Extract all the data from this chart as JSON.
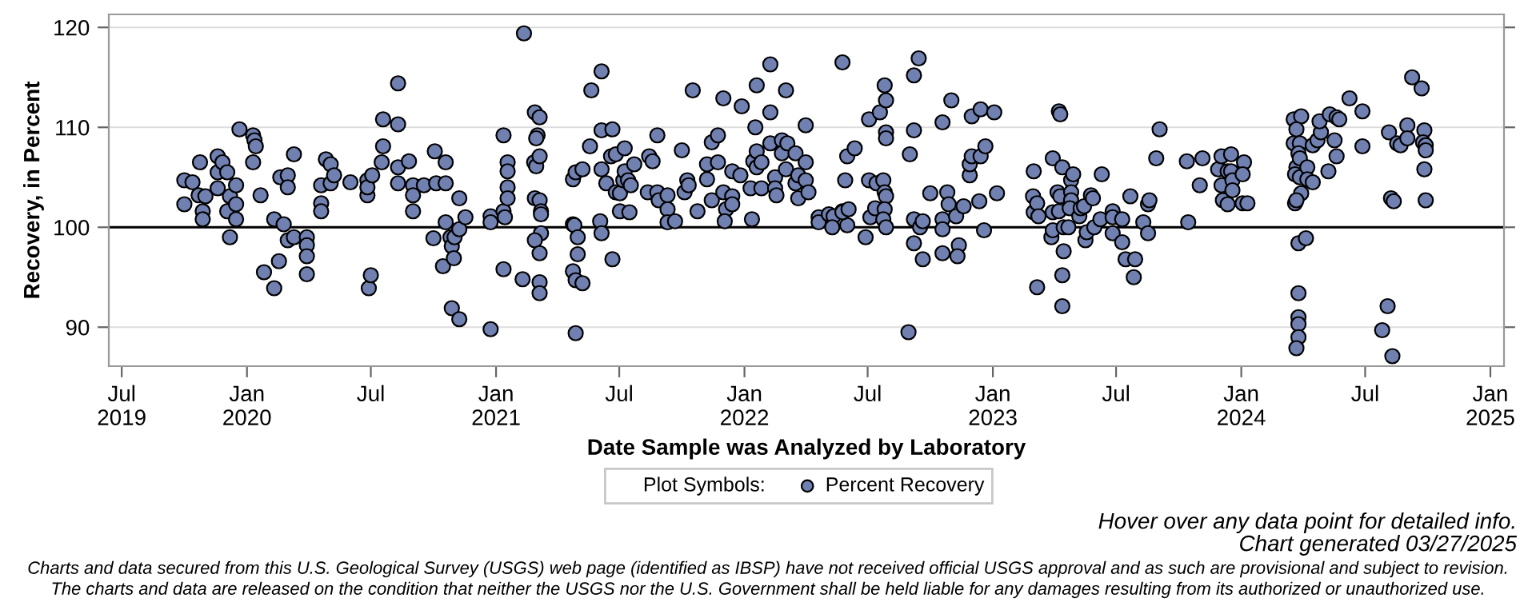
{
  "chart_data": {
    "type": "scatter",
    "xlabel": "Date Sample was Analyzed by Laboratory",
    "ylabel": "Recovery, in Percent",
    "legend_title": "Plot Symbols:",
    "legend": "bottom",
    "marker": "circle",
    "grid": "y",
    "xlim": [
      "2019-06-12",
      "2025-01-21"
    ],
    "ylim": [
      86.1,
      121.3
    ],
    "yticks": [
      90,
      100,
      110,
      120
    ],
    "xticks": [
      {
        "value": "2019-07-01",
        "label": "Jul\n2019"
      },
      {
        "value": "2020-01-01",
        "label": "Jan\n2020"
      },
      {
        "value": "2020-07-01",
        "label": "Jul"
      },
      {
        "value": "2021-01-01",
        "label": "Jan\n2021"
      },
      {
        "value": "2021-07-01",
        "label": "Jul"
      },
      {
        "value": "2022-01-01",
        "label": "Jan\n2022"
      },
      {
        "value": "2022-07-01",
        "label": "Jul"
      },
      {
        "value": "2023-01-01",
        "label": "Jan\n2023"
      },
      {
        "value": "2023-07-01",
        "label": "Jul"
      },
      {
        "value": "2024-01-01",
        "label": "Jan\n2024"
      },
      {
        "value": "2024-07-01",
        "label": "Jul"
      },
      {
        "value": "2025-01-01",
        "label": "Jan\n2025"
      }
    ],
    "ref_lines": [
      {
        "axis": "y",
        "value": 100,
        "color": "#000000"
      }
    ],
    "annotations": [
      "Hover over any data point for detailed info.",
      "Chart generated 03/27/2025",
      "Charts and data secured from this U.S. Geological Survey (USGS) web page (identified as IBSP) have not received official USGS approval and as such are provisional and subject to revision.",
      "The charts and data are released on the condition that neither the USGS nor the U.S. Government shall be held liable for any damages resulting from its authorized or unauthorized use."
    ],
    "series": [
      {
        "name": "Percent Recovery",
        "color": "#7080b0",
        "x": [
          "2019-10-01",
          "2019-10-01",
          "2019-10-13",
          "2019-10-24",
          "2019-10-22",
          "2019-10-28",
          "2019-10-28",
          "2019-11-01",
          "2019-11-19",
          "2019-11-19",
          "2019-11-19",
          "2019-11-26",
          "2019-12-03",
          "2019-12-03",
          "2019-12-07",
          "2019-12-07",
          "2019-12-16",
          "2019-12-16",
          "2019-12-16",
          "2019-12-21",
          "2020-01-10",
          "2020-01-10",
          "2020-01-12",
          "2020-01-14",
          "2020-01-21",
          "2020-01-26",
          "2020-02-10",
          "2020-02-10",
          "2020-02-17",
          "2020-02-19",
          "2020-02-24",
          "2020-03-01",
          "2020-03-01",
          "2020-03-01",
          "2020-03-10",
          "2020-03-10",
          "2020-03-29",
          "2020-03-29",
          "2020-03-29",
          "2020-03-29",
          "2020-04-19",
          "2020-04-19",
          "2020-04-19",
          "2020-04-26",
          "2020-05-03",
          "2020-05-03",
          "2020-05-08",
          "2020-06-01",
          "2020-06-26",
          "2020-06-26",
          "2020-06-26",
          "2020-06-28",
          "2020-07-01",
          "2020-07-03",
          "2020-07-17",
          "2020-07-19",
          "2020-07-19",
          "2020-08-10",
          "2020-08-10",
          "2020-08-10",
          "2020-08-10",
          "2020-08-26",
          "2020-09-01",
          "2020-09-01",
          "2020-09-01",
          "2020-09-17",
          "2020-10-01",
          "2020-10-03",
          "2020-10-05",
          "2020-10-15",
          "2020-10-19",
          "2020-10-19",
          "2020-10-19",
          "2020-10-26",
          "2020-10-28",
          "2020-10-28",
          "2020-10-31",
          "2020-11-01",
          "2020-11-08",
          "2020-11-08",
          "2020-11-08",
          "2020-11-17",
          "2020-12-24",
          "2020-12-24",
          "2020-12-24",
          "2021-01-12",
          "2021-01-12",
          "2021-01-14",
          "2021-01-12",
          "2021-01-18",
          "2021-01-18",
          "2021-01-18",
          "2021-01-18",
          "2021-02-09",
          "2021-02-11",
          "2021-02-27",
          "2021-03-06",
          "2021-03-03",
          "2021-03-01",
          "2021-02-26",
          "2021-03-01",
          "2021-03-06",
          "2021-02-27",
          "2021-03-06",
          "2021-03-08",
          "2021-03-08",
          "2021-03-08",
          "2021-02-27",
          "2021-03-06",
          "2021-03-06",
          "2021-03-06",
          "2021-04-24",
          "2021-04-26",
          "2021-04-24",
          "2021-04-28",
          "2021-05-08",
          "2021-05-01",
          "2021-05-01",
          "2021-04-24",
          "2021-04-28",
          "2021-05-08",
          "2021-04-28",
          "2021-05-19",
          "2021-05-21",
          "2021-06-05",
          "2021-06-05",
          "2021-06-05",
          "2021-06-03",
          "2021-06-05",
          "2021-06-12",
          "2021-06-21",
          "2021-06-21",
          "2021-06-19",
          "2021-06-26",
          "2021-06-26",
          "2021-07-02",
          "2021-07-09",
          "2021-07-07",
          "2021-07-09",
          "2021-07-02",
          "2021-07-16",
          "2021-07-14",
          "2021-07-18",
          "2021-07-23",
          "2021-08-12",
          "2021-08-14",
          "2021-08-19",
          "2021-08-26",
          "2021-08-28",
          "2021-08-26",
          "2021-09-10",
          "2021-09-10",
          "2021-09-10",
          "2021-09-21",
          "2021-10-01",
          "2021-10-05",
          "2021-10-09",
          "2021-10-11",
          "2021-10-17",
          "2021-10-24",
          "2021-11-07",
          "2021-11-07",
          "2021-11-14",
          "2021-11-14",
          "2021-11-23",
          "2021-11-23",
          "2021-12-01",
          "2021-12-01",
          "2021-12-05",
          "2021-12-03",
          "2021-12-14",
          "2021-12-14",
          "2021-12-14",
          "2021-12-26",
          "2021-12-28",
          "2022-01-12",
          "2022-01-10",
          "2022-01-14",
          "2022-01-17",
          "2022-01-19",
          "2022-01-19",
          "2022-01-19",
          "2022-01-26",
          "2022-01-26",
          "2022-02-08",
          "2022-02-08",
          "2022-02-08",
          "2022-02-15",
          "2022-02-15",
          "2022-02-17",
          "2022-02-25",
          "2022-02-25",
          "2022-03-03",
          "2022-03-03",
          "2022-03-05",
          "2022-03-17",
          "2022-03-17",
          "2022-03-21",
          "2022-03-21",
          "2022-04-01",
          "2022-04-01",
          "2022-04-01",
          "2022-04-05",
          "2022-04-20",
          "2022-04-20",
          "2022-05-05",
          "2022-05-12",
          "2022-05-10",
          "2022-05-25",
          "2022-05-25",
          "2022-06-01",
          "2022-05-29",
          "2022-06-01",
          "2022-05-25",
          "2022-06-03",
          "2022-06-12",
          "2022-06-28",
          "2022-07-03",
          "2022-07-03",
          "2022-07-05",
          "2022-07-12",
          "2022-07-14",
          "2022-07-19",
          "2022-07-24",
          "2022-07-26",
          "2022-07-28",
          "2022-07-28",
          "2022-07-28",
          "2022-07-26",
          "2022-07-28",
          "2022-07-26",
          "2022-07-24",
          "2022-07-28",
          "2022-09-01",
          "2022-09-07",
          "2022-09-14",
          "2022-09-07",
          "2022-09-07",
          "2022-09-16",
          "2022-09-20",
          "2022-09-07",
          "2022-09-20",
          "2022-08-30",
          "2022-10-01",
          "2022-10-19",
          "2022-10-19",
          "2022-10-19",
          "2022-10-19",
          "2022-10-26",
          "2022-10-28",
          "2022-11-01",
          "2022-11-08",
          "2022-11-12",
          "2022-11-10",
          "2022-11-19",
          "2022-11-28",
          "2022-11-28",
          "2022-12-01",
          "2022-12-01",
          "2022-12-14",
          "2022-12-12",
          "2022-12-14",
          "2022-12-19",
          "2022-12-21",
          "2023-01-03",
          "2023-01-07",
          "2023-03-02",
          "2023-03-01",
          "2023-03-02",
          "2023-03-07",
          "2023-03-09",
          "2023-03-07",
          "2023-03-30",
          "2023-03-28",
          "2023-03-30",
          "2023-03-30",
          "2023-04-08",
          "2023-04-10",
          "2023-04-06",
          "2023-04-10",
          "2023-04-08",
          "2023-04-13",
          "2023-04-15",
          "2023-04-15",
          "2023-04-13",
          "2023-04-13",
          "2023-04-22",
          "2023-04-26",
          "2023-04-29",
          "2023-04-26",
          "2023-04-26",
          "2023-04-24",
          "2023-05-08",
          "2023-05-10",
          "2023-05-15",
          "2023-05-17",
          "2023-05-19",
          "2023-05-25",
          "2023-05-28",
          "2023-05-30",
          "2023-06-08",
          "2023-06-10",
          "2023-06-26",
          "2023-06-26",
          "2023-06-26",
          "2023-07-10",
          "2023-07-10",
          "2023-07-15",
          "2023-07-29",
          "2023-07-27",
          "2023-07-22",
          "2023-08-10",
          "2023-08-17",
          "2023-08-19",
          "2023-08-17",
          "2023-08-29",
          "2023-09-03",
          "2023-10-13",
          "2023-10-15",
          "2023-11-01",
          "2023-11-05",
          "2023-11-28",
          "2023-12-03",
          "2023-12-03",
          "2023-12-05",
          "2023-12-12",
          "2023-12-12",
          "2023-12-17",
          "2023-12-17",
          "2023-12-19",
          "2023-12-19",
          "2024-01-03",
          "2024-01-05",
          "2024-01-03",
          "2024-01-10",
          "2024-03-18",
          "2024-03-29",
          "2024-03-18",
          "2024-03-22",
          "2024-03-27",
          "2024-03-25",
          "2024-03-22",
          "2024-03-27",
          "2024-03-20",
          "2024-03-27",
          "2024-03-29",
          "2024-03-20",
          "2024-03-22",
          "2024-04-07",
          "2024-04-07",
          "2024-04-15",
          "2024-03-25",
          "2024-04-05",
          "2024-03-25",
          "2024-03-25",
          "2024-03-25",
          "2024-03-25",
          "2024-03-22",
          "2024-04-15",
          "2024-04-22",
          "2024-04-27",
          "2024-04-25",
          "2024-05-08",
          "2024-05-10",
          "2024-05-20",
          "2024-05-17",
          "2024-05-20",
          "2024-05-24",
          "2024-06-08",
          "2024-06-27",
          "2024-06-27",
          "2024-07-26",
          "2024-08-03",
          "2024-08-05",
          "2024-08-08",
          "2024-08-12",
          "2024-08-10",
          "2024-08-17",
          "2024-08-22",
          "2024-09-01",
          "2024-09-01",
          "2024-09-08",
          "2024-09-22",
          "2024-09-26",
          "2024-09-24",
          "2024-09-28",
          "2024-09-28",
          "2024-09-26",
          "2024-09-28"
        ],
        "values": [
          104.7,
          102.3,
          104.5,
          106.5,
          103.2,
          101.6,
          100.8,
          103.1,
          107.1,
          105.5,
          103.9,
          106.5,
          105.5,
          101.6,
          103.1,
          99.0,
          104.2,
          102.3,
          100.8,
          109.8,
          109.2,
          106.5,
          108.7,
          108.1,
          103.2,
          95.5,
          100.8,
          93.9,
          96.6,
          105.0,
          100.3,
          105.2,
          104.0,
          98.7,
          107.3,
          99.0,
          99.0,
          98.2,
          97.1,
          95.3,
          104.2,
          102.4,
          101.6,
          106.8,
          106.3,
          104.4,
          105.2,
          104.5,
          104.7,
          103.2,
          104.0,
          93.9,
          95.2,
          105.2,
          106.5,
          110.8,
          108.1,
          114.4,
          110.3,
          106.0,
          104.4,
          106.6,
          104.2,
          103.2,
          101.6,
          104.2,
          98.9,
          107.6,
          104.4,
          96.1,
          106.5,
          104.4,
          100.5,
          99.0,
          98.1,
          91.9,
          96.9,
          99.0,
          102.9,
          99.8,
          90.8,
          101.0,
          101.1,
          100.5,
          89.8,
          109.2,
          101.6,
          101.0,
          95.8,
          106.5,
          105.6,
          104.0,
          102.9,
          94.8,
          119.4,
          111.5,
          111.0,
          109.2,
          108.9,
          106.5,
          106.1,
          107.1,
          102.9,
          102.7,
          101.6,
          101.3,
          99.4,
          98.7,
          97.4,
          94.5,
          93.4,
          100.3,
          100.2,
          104.8,
          105.5,
          105.8,
          99.0,
          97.3,
          95.6,
          94.7,
          94.4,
          89.4,
          108.1,
          113.7,
          115.6,
          109.7,
          105.8,
          100.6,
          99.4,
          104.4,
          96.8,
          109.8,
          107.1,
          107.3,
          103.5,
          103.4,
          107.9,
          104.7,
          105.6,
          101.6,
          101.5,
          104.7,
          104.2,
          106.3,
          103.5,
          107.1,
          106.6,
          103.5,
          102.7,
          109.2,
          103.2,
          101.8,
          100.5,
          100.6,
          107.7,
          103.5,
          104.7,
          104.2,
          113.7,
          101.6,
          104.8,
          106.3,
          102.7,
          108.5,
          109.2,
          106.5,
          112.9,
          103.5,
          101.8,
          100.6,
          103.1,
          102.3,
          105.6,
          105.2,
          112.1,
          100.8,
          103.9,
          106.6,
          110.0,
          107.6,
          106.0,
          114.2,
          106.5,
          103.9,
          116.3,
          111.5,
          108.4,
          105.0,
          103.9,
          103.2,
          108.7,
          107.4,
          113.7,
          105.8,
          108.4,
          107.4,
          104.4,
          105.2,
          102.9,
          110.2,
          104.7,
          106.5,
          103.5,
          101.0,
          100.5,
          101.3,
          101.1,
          100.0,
          101.6,
          116.5,
          107.1,
          104.7,
          100.2,
          101.5,
          101.8,
          107.9,
          99.0,
          110.8,
          104.7,
          101.0,
          101.9,
          104.4,
          111.5,
          104.7,
          114.2,
          112.7,
          109.5,
          108.9,
          103.5,
          103.1,
          101.8,
          100.8,
          100.0,
          107.3,
          115.2,
          116.9,
          109.7,
          100.8,
          100.0,
          100.6,
          98.4,
          96.8,
          89.5,
          103.4,
          110.5,
          100.8,
          99.8,
          97.4,
          103.5,
          102.3,
          112.7,
          101.1,
          98.2,
          97.1,
          102.1,
          105.2,
          106.3,
          111.1,
          107.1,
          107.1,
          102.6,
          111.8,
          99.7,
          108.1,
          111.5,
          103.4,
          105.6,
          103.1,
          101.5,
          102.4,
          101.1,
          94.0,
          106.9,
          99.0,
          99.7,
          101.5,
          111.6,
          111.3,
          103.5,
          103.1,
          101.6,
          106.0,
          100.0,
          97.6,
          95.2,
          92.1,
          100.0,
          104.7,
          105.3,
          103.5,
          102.7,
          101.9,
          101.1,
          101.9,
          102.1,
          98.7,
          99.5,
          103.2,
          102.9,
          100.0,
          100.8,
          105.3,
          101.6,
          99.4,
          101.0,
          100.8,
          98.5,
          96.8,
          96.8,
          95.0,
          103.1,
          100.5,
          102.3,
          102.7,
          99.4,
          106.9,
          109.8,
          106.6,
          100.5,
          104.2,
          106.9,
          105.8,
          107.1,
          104.2,
          102.7,
          105.6,
          102.3,
          107.3,
          105.6,
          104.7,
          103.7,
          102.4,
          106.5,
          105.3,
          102.4,
          110.8,
          111.1,
          108.4,
          109.8,
          108.4,
          107.4,
          106.0,
          106.9,
          105.3,
          105.0,
          103.4,
          102.4,
          102.7,
          106.0,
          104.8,
          104.5,
          98.4,
          98.9,
          93.4,
          91.0,
          90.3,
          89.0,
          87.9,
          108.2,
          108.7,
          109.5,
          110.6,
          105.6,
          111.3,
          107.1,
          108.7,
          111.0,
          110.8,
          112.9,
          111.6,
          108.1,
          89.7,
          92.1,
          109.5,
          102.9,
          102.6,
          87.1,
          108.4,
          108.2,
          110.2,
          108.9,
          115.0,
          113.9,
          109.7,
          108.5,
          108.2,
          107.7,
          105.8,
          102.7
        ]
      }
    ]
  }
}
